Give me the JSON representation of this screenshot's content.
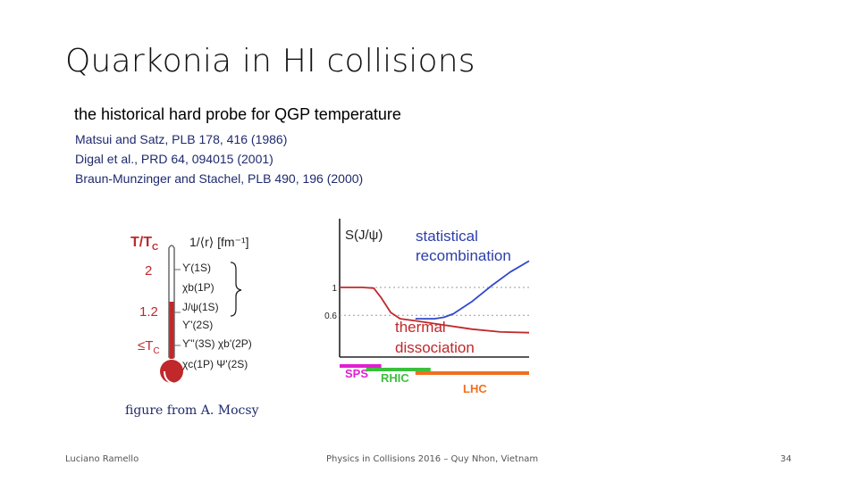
{
  "slide": {
    "title": "Quarkonia in HI collisions",
    "subtitle": "the historical hard probe for QGP temperature",
    "references": [
      "Matsui and Satz, PLB 178,  416 (1986)",
      "Digal et al., PRD 64, 094015 (2001)",
      "Braun-Munzinger and Stachel, PLB 490, 196 (2000)"
    ],
    "caption": "figure from A. Mocsy"
  },
  "figure_left": {
    "col1_header_main": "T/T",
    "col1_header_sub": "C",
    "col2_header": "1/⟨r⟩ [fm⁻¹]",
    "thermometer_values": [
      {
        "label": "2",
        "prefix": "",
        "sub": ""
      },
      {
        "label": "1.2",
        "prefix": "",
        "sub": ""
      },
      {
        "label": "T",
        "prefix": "≤",
        "sub": "C"
      }
    ],
    "states": [
      "ϒ(1S)",
      "χb(1P)",
      "J/ψ(1S)",
      "ϒ'(2S)",
      "ϒ''(3S) χb'(2P)",
      "χc(1P) Ψ'(2S)"
    ],
    "colors": {
      "mercury": "#c0282b",
      "tube_outline": "#6a6a6a"
    }
  },
  "chart_data": {
    "type": "line",
    "ylabel": "S(J/ψ)",
    "ytick_labels": [
      "1",
      "0.6"
    ],
    "ytick_values": [
      1,
      0.6
    ],
    "annotations": [
      "statistical",
      "recombination",
      "thermal",
      "dissociation"
    ],
    "series": [
      {
        "color": "#c0282b",
        "x": [
          0.0,
          0.12,
          0.18,
          0.22,
          0.27,
          0.32,
          0.4,
          0.55,
          0.7,
          0.85,
          1.0
        ],
        "values": [
          1.0,
          1.0,
          0.99,
          0.85,
          0.64,
          0.55,
          0.52,
          0.46,
          0.4,
          0.36,
          0.35
        ]
      },
      {
        "color": "#3048c8",
        "x": [
          0.4,
          0.5,
          0.55,
          0.6,
          0.7,
          0.8,
          0.9,
          1.0
        ],
        "values": [
          0.55,
          0.55,
          0.57,
          0.62,
          0.8,
          1.02,
          1.22,
          1.38
        ]
      }
    ],
    "reference_lines": [
      1.0,
      0.6
    ],
    "energy_bands": [
      {
        "label": "SPS",
        "color": "#e020d0",
        "x": [
          0.0,
          0.22
        ]
      },
      {
        "label": "RHIC",
        "color": "#3cc03c",
        "x": [
          0.14,
          0.48
        ]
      },
      {
        "label": "LHC",
        "color": "#f07020",
        "x": [
          0.4,
          1.0
        ]
      }
    ]
  },
  "footer": {
    "author": "Luciano Ramello",
    "event": "Physics in Collisions 2016 – Quy Nhon, Vietnam",
    "page": "34"
  }
}
